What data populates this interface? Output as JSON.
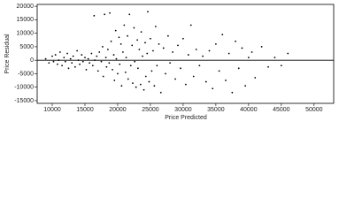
{
  "chart_data": {
    "type": "scatter",
    "x_label": "Price Predicted",
    "y_label": "Price Residual",
    "color": "#000000",
    "xlim": [
      7700,
      53000
    ],
    "ylim": [
      -16000,
      20700
    ],
    "xticks": [
      10000,
      15000,
      20000,
      25000,
      30000,
      35000,
      40000,
      45000,
      50000
    ],
    "yticks": [
      20000,
      15000,
      10000,
      5000,
      0,
      -5000,
      -10000,
      -15000
    ],
    "x": [
      9000,
      9500,
      10000,
      10200,
      10500,
      10800,
      11000,
      11200,
      11500,
      11800,
      12000,
      12300,
      12500,
      12800,
      13000,
      13200,
      13500,
      13800,
      14000,
      14200,
      14500,
      14700,
      15000,
      15200,
      15500,
      15700,
      16000,
      16200,
      16400,
      16500,
      16800,
      17000,
      17200,
      17500,
      17700,
      17800,
      18000,
      18200,
      18300,
      18500,
      18700,
      18800,
      19000,
      19200,
      19400,
      19500,
      19700,
      19800,
      20000,
      20200,
      20300,
      20500,
      20600,
      20800,
      21000,
      21200,
      21300,
      21500,
      21600,
      21800,
      22000,
      22200,
      22300,
      22500,
      22600,
      22800,
      23000,
      23100,
      23300,
      23500,
      23600,
      23800,
      24000,
      24200,
      24300,
      24500,
      24600,
      24800,
      25000,
      25200,
      25400,
      25600,
      25800,
      26000,
      26300,
      26600,
      27000,
      27300,
      27700,
      28000,
      28400,
      28800,
      29200,
      29600,
      30000,
      30400,
      30800,
      31200,
      31600,
      32000,
      32500,
      33000,
      33500,
      34000,
      34500,
      35000,
      35500,
      36000,
      36500,
      37000,
      37500,
      38000,
      38500,
      39000,
      39500,
      40000,
      40500,
      41000,
      42000,
      43000,
      44000,
      45000,
      46000
    ],
    "values": [
      500,
      -1000,
      1500,
      -500,
      2000,
      -1500,
      0,
      3000,
      -2000,
      1000,
      -500,
      2500,
      -3000,
      500,
      -1000,
      1500,
      -2500,
      3500,
      0,
      -1500,
      2000,
      -500,
      1000,
      -3500,
      500,
      -1000,
      2500,
      -2000,
      16500,
      0,
      1500,
      -4000,
      3000,
      -500,
      5000,
      -6000,
      17000,
      1000,
      -2500,
      4000,
      -1000,
      17500,
      7000,
      -3500,
      2000,
      -7500,
      11000,
      500,
      -5000,
      8500,
      -1500,
      6000,
      -9500,
      3000,
      13000,
      -4500,
      1000,
      9000,
      -7000,
      17000,
      -2000,
      5500,
      -8500,
      12000,
      -500,
      -10000,
      7500,
      -3000,
      4000,
      -9000,
      10500,
      1500,
      -11000,
      6500,
      -6000,
      2500,
      18000,
      -8000,
      8000,
      -4000,
      3500,
      -9500,
      12500,
      -2000,
      6000,
      -12000,
      4500,
      -5000,
      9000,
      -1000,
      3000,
      -7000,
      5500,
      -3000,
      8000,
      -9000,
      2000,
      13000,
      -6000,
      4000,
      -2000,
      1500,
      -8000,
      3500,
      -10500,
      6000,
      -4000,
      9500,
      -7500,
      2500,
      -12000,
      7000,
      -3000,
      4500,
      -9500,
      1000,
      3000,
      -6500,
      5000,
      -2500,
      1000,
      -2000,
      2500
    ]
  }
}
